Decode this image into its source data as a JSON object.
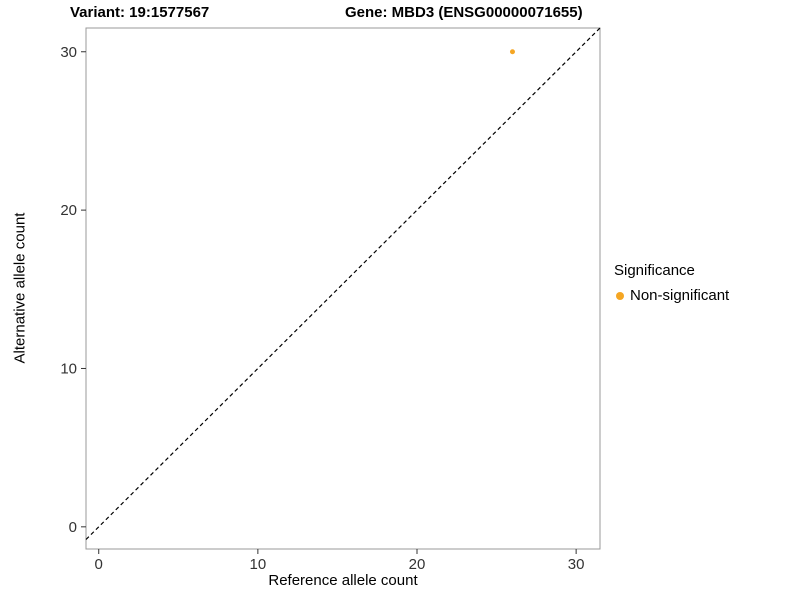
{
  "header": {
    "variant_title": "Variant: 19:1577567",
    "gene_title": "Gene: MBD3 (ENSG00000071655)"
  },
  "chart_data": {
    "type": "scatter",
    "title": "",
    "xlabel": "Reference allele count",
    "ylabel": "Alternative allele count",
    "xlim": [
      -0.8,
      31.5
    ],
    "ylim": [
      -1.4,
      31.5
    ],
    "xticks": [
      0,
      10,
      20,
      30
    ],
    "yticks": [
      0,
      10,
      20,
      30
    ],
    "grid": false,
    "points": [
      {
        "x": 26,
        "y": 30,
        "series": "Non-significant",
        "color": "#F5A623"
      }
    ],
    "identity_line": {
      "style": "dashed",
      "equation": "y = x",
      "color": "#000000"
    },
    "legend": {
      "position": "right",
      "title": "Significance",
      "entries": [
        {
          "label": "Non-significant",
          "color": "#F5A623"
        }
      ]
    }
  },
  "colors": {
    "background": "#FFFFFF",
    "panel_border": "#999999",
    "tick": "#333333",
    "tick_label": "#333333",
    "point": "#F5A623",
    "line": "#000000"
  }
}
